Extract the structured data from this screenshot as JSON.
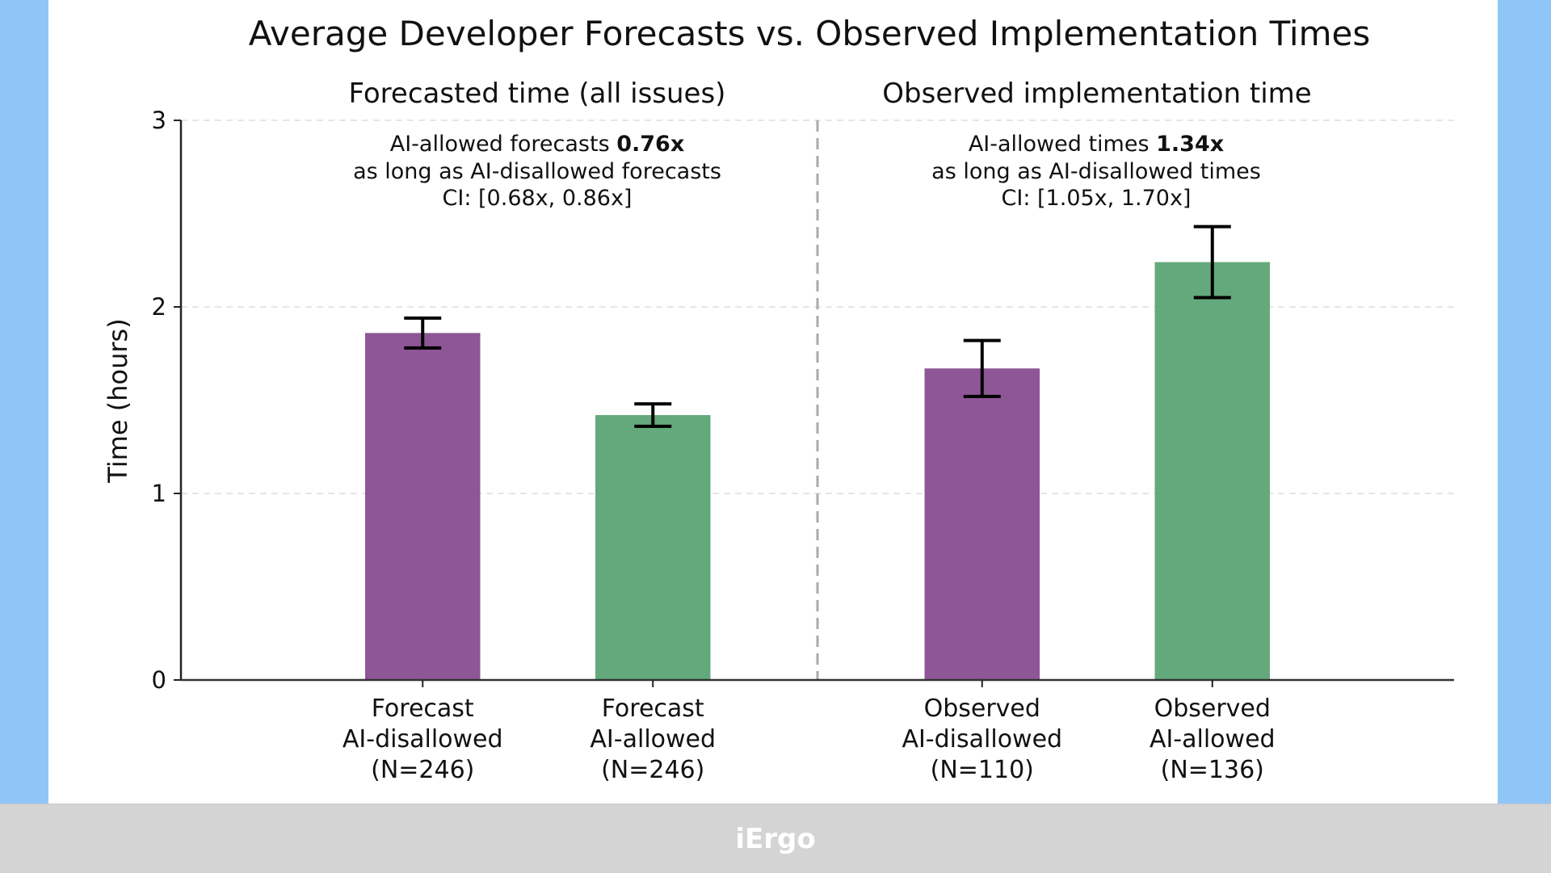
{
  "footer": {
    "logo_text": "iErgo",
    "logo_icon": "ergo-logo-icon"
  },
  "colors": {
    "left_background": "#8fc6f7",
    "panel_background": "#ffffff",
    "footer_background": "#d4d4d4",
    "ai_disallowed": "#8e5696",
    "ai_allowed": "#64a97c",
    "error_bar": "#000000",
    "divider": "#aaaaaa",
    "grid": "#dddddd"
  },
  "chart_data": {
    "type": "bar",
    "title": "Average Developer Forecasts vs. Observed Implementation Times",
    "xlabel": "",
    "ylabel": "Time (hours)",
    "ylim": [
      0,
      3
    ],
    "yticks": [
      0,
      1,
      2,
      3
    ],
    "ytick_labels": [
      "0",
      "1",
      "2",
      "3"
    ],
    "xlim": [
      -1.05,
      4.48
    ],
    "grid": "horizontal dashed",
    "legend": "none",
    "bar_width": 0.5,
    "divider_x": 1.715,
    "panels": [
      {
        "subtitle": "Forecasted time (all issues)",
        "annotation": {
          "line1_prefix": "AI-allowed forecasts ",
          "line1_bold": "0.76x",
          "line2": "as long as AI-disallowed forecasts",
          "line3": "CI: [0.68x, 0.86x]"
        }
      },
      {
        "subtitle": "Observed implementation time",
        "annotation": {
          "line1_prefix": "AI-allowed times ",
          "line1_bold": "1.34x",
          "line2": "as long as AI-disallowed times",
          "line3": "CI: [1.05x, 1.70x]"
        }
      }
    ],
    "categories": [
      "Forecast AI-disallowed (N=246)",
      "Forecast AI-allowed (N=246)",
      "Observed AI-disallowed (N=110)",
      "Observed AI-allowed (N=136)"
    ],
    "category_lines": [
      [
        "Forecast",
        "AI-disallowed",
        "(N=246)"
      ],
      [
        "Forecast",
        "AI-allowed",
        "(N=246)"
      ],
      [
        "Observed",
        "AI-disallowed",
        "(N=110)"
      ],
      [
        "Observed",
        "AI-allowed",
        "(N=136)"
      ]
    ],
    "x": [
      0,
      1,
      2.43,
      3.43
    ],
    "values": [
      1.86,
      1.42,
      1.67,
      2.24
    ],
    "error_low": [
      1.78,
      1.36,
      1.52,
      2.05
    ],
    "error_high": [
      1.94,
      1.48,
      1.82,
      2.43
    ],
    "groups": [
      "ai_disallowed",
      "ai_allowed",
      "ai_disallowed",
      "ai_allowed"
    ]
  }
}
